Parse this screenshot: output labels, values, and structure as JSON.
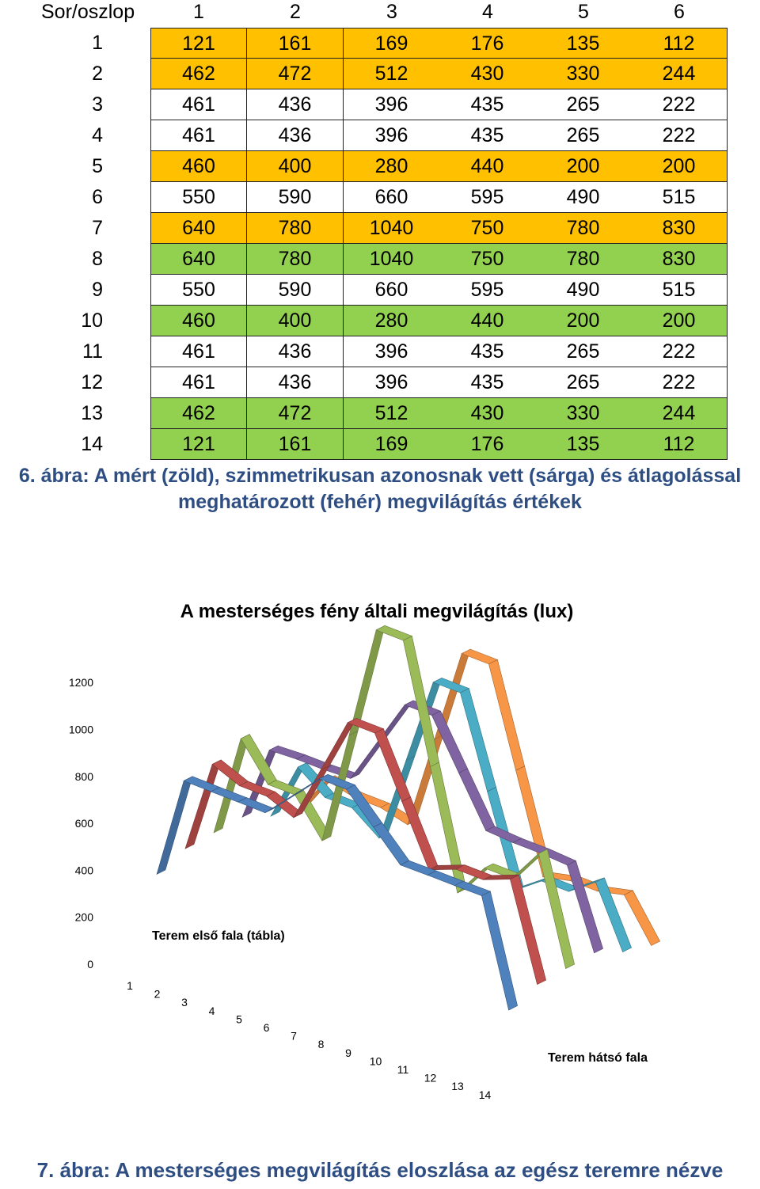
{
  "table": {
    "corner_label": "Sor/oszlop",
    "columns": [
      "1",
      "2",
      "3",
      "4",
      "5",
      "6"
    ],
    "rows": [
      {
        "label": "1",
        "status": "yellow",
        "values": [
          "121",
          "161",
          "169",
          "176",
          "135",
          "112"
        ]
      },
      {
        "label": "2",
        "status": "yellow",
        "values": [
          "462",
          "472",
          "512",
          "430",
          "330",
          "244"
        ]
      },
      {
        "label": "3",
        "status": "white",
        "values": [
          "461",
          "436",
          "396",
          "435",
          "265",
          "222"
        ]
      },
      {
        "label": "4",
        "status": "white",
        "values": [
          "461",
          "436",
          "396",
          "435",
          "265",
          "222"
        ]
      },
      {
        "label": "5",
        "status": "yellow",
        "values": [
          "460",
          "400",
          "280",
          "440",
          "200",
          "200"
        ]
      },
      {
        "label": "6",
        "status": "white",
        "values": [
          "550",
          "590",
          "660",
          "595",
          "490",
          "515"
        ]
      },
      {
        "label": "7",
        "status": "yellow",
        "values": [
          "640",
          "780",
          "1040",
          "750",
          "780",
          "830"
        ]
      },
      {
        "label": "8",
        "status": "green",
        "values": [
          "640",
          "780",
          "1040",
          "750",
          "780",
          "830"
        ]
      },
      {
        "label": "9",
        "status": "white",
        "values": [
          "550",
          "590",
          "660",
          "595",
          "490",
          "515"
        ]
      },
      {
        "label": "10",
        "status": "green",
        "values": [
          "460",
          "400",
          "280",
          "440",
          "200",
          "200"
        ]
      },
      {
        "label": "11",
        "status": "white",
        "values": [
          "461",
          "436",
          "396",
          "435",
          "265",
          "222"
        ]
      },
      {
        "label": "12",
        "status": "white",
        "values": [
          "461",
          "436",
          "396",
          "435",
          "265",
          "222"
        ]
      },
      {
        "label": "13",
        "status": "green",
        "values": [
          "462",
          "472",
          "512",
          "430",
          "330",
          "244"
        ]
      },
      {
        "label": "14",
        "status": "green",
        "values": [
          "121",
          "161",
          "169",
          "176",
          "135",
          "112"
        ]
      }
    ],
    "colors": {
      "yellow": "#ffc000",
      "green": "#92d050",
      "white": "#ffffff"
    }
  },
  "caption_6": {
    "line1": "6. ábra: A mért (zöld), szimmetrikusan azonosnak vett (sárga) és átlagolással",
    "line2": "meghatározott (fehér) megvilágítás értékek"
  },
  "chart_data": {
    "type": "line",
    "style": "3d-ribbon",
    "title": "A mesterséges fény általi megvilágítás (lux)",
    "y_ticks": [
      "0",
      "200",
      "400",
      "600",
      "800",
      "1000",
      "1200"
    ],
    "ylim": [
      0,
      1200
    ],
    "x_ticks": [
      "1",
      "2",
      "3",
      "4",
      "5",
      "6",
      "7",
      "8",
      "9",
      "10",
      "11",
      "12",
      "13",
      "14"
    ],
    "x_axis_label_front": "Terem első fala (tábla)",
    "x_axis_label_back": "Terem hátsó fala",
    "categories": [
      "1",
      "2",
      "3",
      "4",
      "5",
      "6",
      "7",
      "8",
      "9",
      "10",
      "11",
      "12",
      "13",
      "14"
    ],
    "series": [
      {
        "color": "#4f81bd",
        "values": [
          121,
          462,
          461,
          461,
          460,
          550,
          640,
          640,
          550,
          460,
          461,
          461,
          462,
          121
        ]
      },
      {
        "color": "#c0504d",
        "values": [
          161,
          472,
          436,
          436,
          400,
          590,
          780,
          780,
          590,
          400,
          436,
          436,
          472,
          161
        ]
      },
      {
        "color": "#9bbb59",
        "values": [
          169,
          512,
          396,
          396,
          280,
          660,
          1040,
          1040,
          660,
          280,
          396,
          396,
          512,
          169
        ]
      },
      {
        "color": "#8064a2",
        "values": [
          176,
          430,
          435,
          435,
          440,
          595,
          750,
          750,
          595,
          440,
          435,
          435,
          430,
          176
        ]
      },
      {
        "color": "#4bacc6",
        "values": [
          135,
          330,
          265,
          265,
          200,
          490,
          780,
          780,
          490,
          200,
          265,
          265,
          330,
          135
        ]
      },
      {
        "color": "#f79646",
        "values": [
          112,
          244,
          222,
          222,
          200,
          515,
          830,
          830,
          515,
          200,
          222,
          222,
          244,
          112
        ]
      }
    ]
  },
  "caption_7": "7. ábra: A mesterséges megvilágítás eloszlása az egész teremre nézve"
}
